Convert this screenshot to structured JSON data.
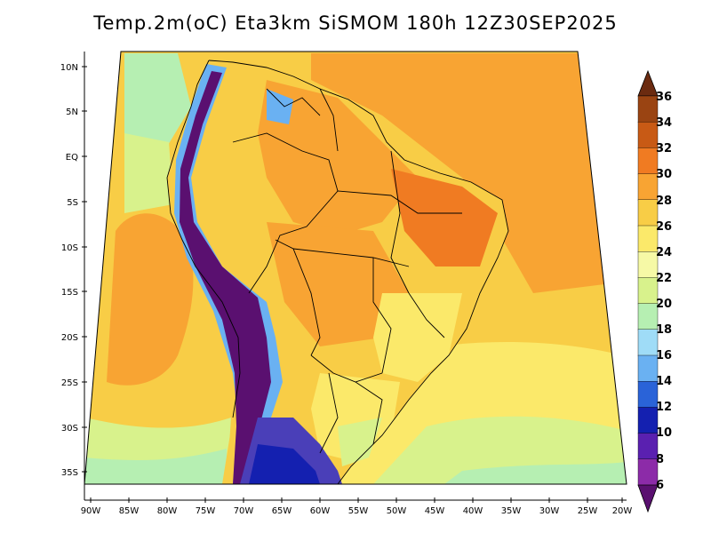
{
  "title": "Temp.2m(oC) Eta3km SiSMOM 180h 12Z30SEP2025",
  "lat_labels": [
    "10N",
    "5N",
    "EQ",
    "5S",
    "10S",
    "15S",
    "20S",
    "25S",
    "30S",
    "35S"
  ],
  "lon_labels": [
    "90W",
    "85W",
    "80W",
    "75W",
    "70W",
    "65W",
    "60W",
    "55W",
    "50W",
    "45W",
    "40W",
    "35W",
    "30W",
    "25W",
    "20W"
  ],
  "colorbar": {
    "labels": [
      "36",
      "34",
      "32",
      "30",
      "28",
      "26",
      "24",
      "22",
      "20",
      "18",
      "16",
      "14",
      "12",
      "10",
      "8",
      "6"
    ],
    "colors": [
      "#6b2b10",
      "#9a4412",
      "#c85a15",
      "#f07b22",
      "#f8a433",
      "#f8cd46",
      "#fbe96a",
      "#f6f9a6",
      "#d8f28c",
      "#b6efb2",
      "#9fdcf7",
      "#6ab1f2",
      "#2a63d8",
      "#1420b0",
      "#5a20b0",
      "#8c2ba8",
      "#5a1070"
    ]
  },
  "colors": {
    "ocean_warm": "#f8cd46",
    "ocean_hot": "#f8a433",
    "ocean_mild": "#fbe96a",
    "ocean_cool": "#d8f28c",
    "land_hot": "#f07b22",
    "andes_cold": "#5a1070",
    "andes_mid": "#2a63d8",
    "patagonia": "#4a3fb8"
  }
}
